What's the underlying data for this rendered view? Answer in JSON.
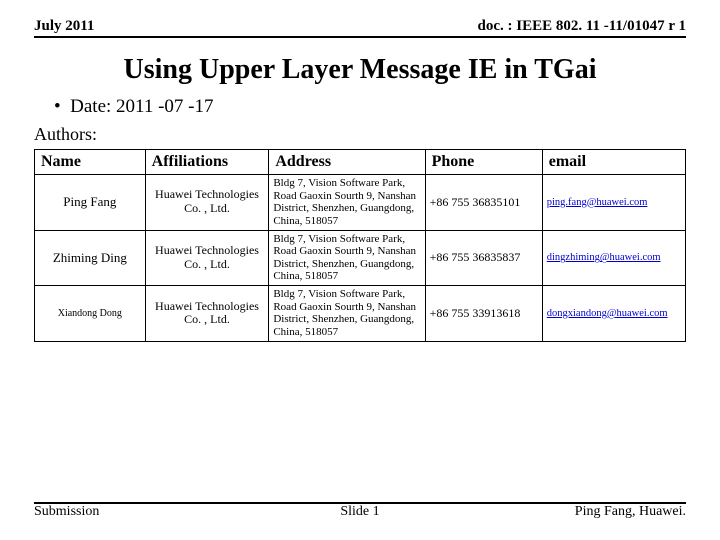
{
  "header": {
    "left": "July 2011",
    "right": "doc. : IEEE 802. 11 -11/01047 r 1"
  },
  "title": "Using Upper Layer Message IE in TGai",
  "date_bullet": "•",
  "date_label": "Date: 2011 -07 -17",
  "authors_label": "Authors:",
  "columns": {
    "name": "Name",
    "aff": "Affiliations",
    "addr": "Address",
    "phone": "Phone",
    "email": "email"
  },
  "rows": [
    {
      "name": "Ping Fang",
      "name_small": false,
      "aff": "Huawei Technologies Co. , Ltd.",
      "addr": "Bldg 7, Vision Software Park, Road Gaoxin Sourth 9, Nanshan District, Shenzhen, Guangdong, China, 518057",
      "phone": "+86 755 36835101",
      "email": "ping.fang@huawei.com"
    },
    {
      "name": "Zhiming Ding",
      "name_small": false,
      "aff": "Huawei Technologies Co. , Ltd.",
      "addr": "Bldg 7, Vision Software Park, Road Gaoxin Sourth 9, Nanshan District, Shenzhen, Guangdong, China, 518057",
      "phone": "+86 755 36835837",
      "email": "dingzhiming@huawei.com"
    },
    {
      "name": "Xiandong Dong",
      "name_small": true,
      "aff": "Huawei Technologies Co. , Ltd.",
      "addr": "Bldg 7, Vision Software Park, Road Gaoxin Sourth 9, Nanshan District, Shenzhen, Guangdong, China, 518057",
      "phone": "+86 755 33913618",
      "email": "dongxiandong@huawei.com"
    }
  ],
  "footer": {
    "left": "Submission",
    "center": "Slide 1",
    "right": "Ping Fang, Huawei."
  }
}
